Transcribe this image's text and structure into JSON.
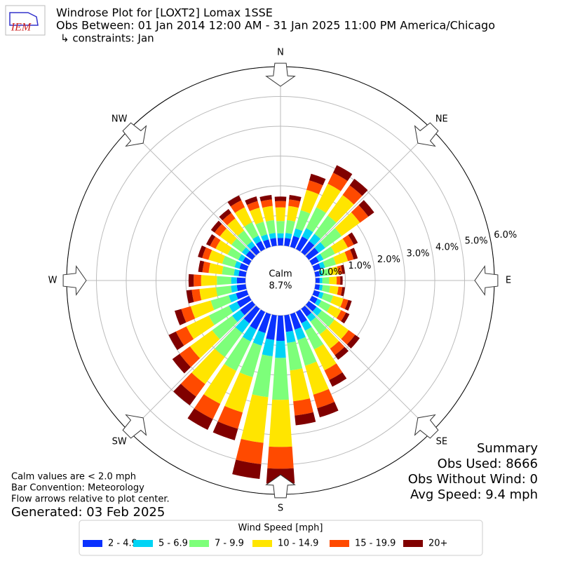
{
  "header": {
    "logo": "IEM",
    "title": "Windrose Plot for [LOXT2] Lomax 1SSE",
    "subtitle": "Obs Between: 01 Jan 2014 12:00 AM - 31 Jan 2025 11:00 PM America/Chicago",
    "constraints": "↳ constraints: Jan"
  },
  "chart_data": {
    "type": "windrose",
    "directions": [
      0,
      10,
      20,
      30,
      40,
      50,
      60,
      70,
      80,
      90,
      100,
      110,
      120,
      130,
      140,
      150,
      160,
      170,
      180,
      190,
      200,
      210,
      220,
      230,
      240,
      250,
      260,
      270,
      280,
      290,
      300,
      310,
      320,
      330,
      340,
      350
    ],
    "rlim": [
      0,
      6
    ],
    "rticks": [
      {
        "value": 0,
        "label": "0.0%"
      },
      {
        "value": 1,
        "label": "1.0%"
      },
      {
        "value": 2,
        "label": "2.0%"
      },
      {
        "value": 3,
        "label": "3.0%"
      },
      {
        "value": 4,
        "label": "4.0%"
      },
      {
        "value": 5,
        "label": "5.0%"
      },
      {
        "value": 6,
        "label": "6.0%"
      }
    ],
    "compass_labels": [
      "N",
      "NE",
      "E",
      "SE",
      "S",
      "SW",
      "W",
      "NW"
    ],
    "calm": {
      "label": "Calm",
      "value_label": "8.7%"
    },
    "legend_title": "Wind Speed [mph]",
    "series": [
      {
        "name": "2 - 4.9",
        "color": "#0a31ff",
        "values": [
          0.25,
          0.26,
          0.38,
          0.47,
          0.46,
          0.41,
          0.26,
          0.23,
          0.15,
          0.14,
          0.15,
          0.2,
          0.21,
          0.32,
          0.32,
          0.42,
          0.54,
          0.56,
          0.85,
          0.83,
          0.66,
          0.66,
          0.6,
          0.5,
          0.45,
          0.38,
          0.3,
          0.29,
          0.24,
          0.26,
          0.24,
          0.26,
          0.27,
          0.3,
          0.26,
          0.26
        ]
      },
      {
        "name": "5 - 6.9",
        "color": "#00d4f5",
        "values": [
          0.16,
          0.17,
          0.26,
          0.31,
          0.3,
          0.27,
          0.17,
          0.15,
          0.1,
          0.09,
          0.1,
          0.13,
          0.14,
          0.21,
          0.21,
          0.28,
          0.36,
          0.37,
          0.57,
          0.55,
          0.44,
          0.44,
          0.4,
          0.33,
          0.3,
          0.25,
          0.2,
          0.19,
          0.16,
          0.17,
          0.16,
          0.17,
          0.18,
          0.2,
          0.18,
          0.17
        ]
      },
      {
        "name": "7 - 9.9",
        "color": "#7dff7a",
        "values": [
          0.41,
          0.43,
          0.64,
          0.78,
          0.76,
          0.68,
          0.43,
          0.38,
          0.25,
          0.23,
          0.25,
          0.33,
          0.35,
          0.53,
          0.53,
          0.7,
          0.9,
          0.93,
          1.41,
          1.38,
          1.1,
          1.1,
          1.0,
          0.83,
          0.75,
          0.63,
          0.5,
          0.48,
          0.4,
          0.43,
          0.4,
          0.43,
          0.45,
          0.5,
          0.44,
          0.43
        ]
      },
      {
        "name": "10 - 14.9",
        "color": "#ffe500",
        "values": [
          0.46,
          0.48,
          0.71,
          0.88,
          0.85,
          0.76,
          0.48,
          0.42,
          0.28,
          0.25,
          0.28,
          0.36,
          0.39,
          0.59,
          0.59,
          0.78,
          1.01,
          1.04,
          1.58,
          1.54,
          1.23,
          1.23,
          1.12,
          0.92,
          0.84,
          0.7,
          0.56,
          0.53,
          0.45,
          0.48,
          0.45,
          0.48,
          0.5,
          0.56,
          0.49,
          0.48
        ]
      },
      {
        "name": "15 - 19.9",
        "color": "#ff4a00",
        "values": [
          0.21,
          0.22,
          0.33,
          0.41,
          0.4,
          0.35,
          0.22,
          0.2,
          0.13,
          0.12,
          0.13,
          0.17,
          0.18,
          0.27,
          0.27,
          0.36,
          0.47,
          0.48,
          0.73,
          0.72,
          0.57,
          0.57,
          0.52,
          0.43,
          0.39,
          0.33,
          0.26,
          0.25,
          0.21,
          0.22,
          0.21,
          0.22,
          0.23,
          0.26,
          0.23,
          0.22
        ]
      },
      {
        "name": "20+",
        "color": "#800000",
        "values": [
          0.15,
          0.15,
          0.23,
          0.28,
          0.27,
          0.24,
          0.15,
          0.14,
          0.09,
          0.08,
          0.09,
          0.12,
          0.13,
          0.19,
          0.19,
          0.25,
          0.32,
          0.33,
          0.51,
          0.5,
          0.4,
          0.4,
          0.36,
          0.3,
          0.27,
          0.23,
          0.18,
          0.17,
          0.14,
          0.15,
          0.14,
          0.15,
          0.16,
          0.18,
          0.16,
          0.15
        ]
      }
    ]
  },
  "notes": [
    "Calm values are < 2.0 mph",
    "Bar Convention: Meteorology",
    "Flow arrows relative to plot center."
  ],
  "generated": "Generated: 03 Feb 2025",
  "summary": [
    "Summary",
    "Obs Used: 8666",
    "Obs Without Wind: 0",
    "Avg Speed: 9.4 mph"
  ]
}
